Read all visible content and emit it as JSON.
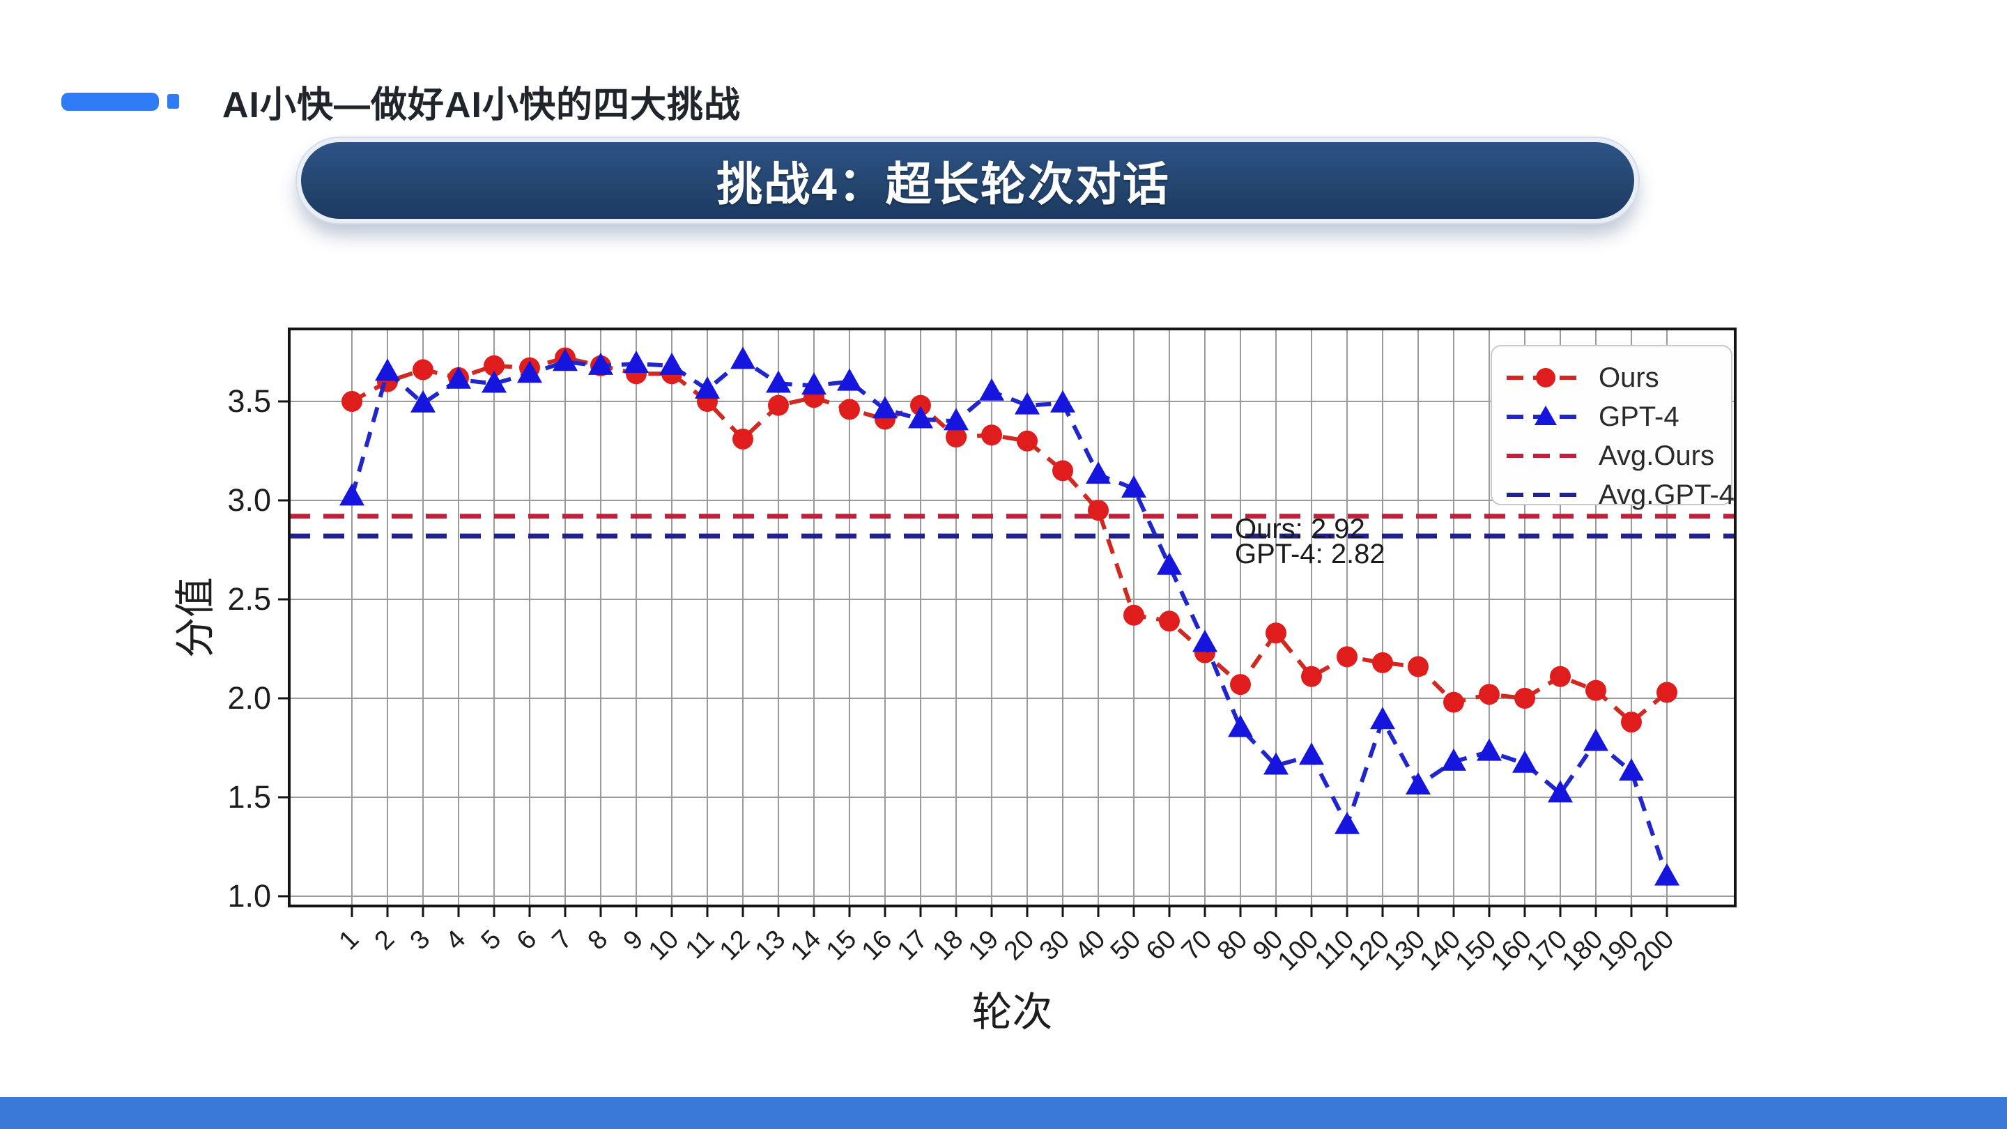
{
  "header": {
    "title": "AI小快—做好AI小快的四大挑战",
    "accent_color": "#2e7bf5"
  },
  "banner": {
    "label": "挑战4：超长轮次对话",
    "bg_color": "#24466f"
  },
  "footer": {
    "bar_color": "#3a7ad6"
  },
  "chart_data": {
    "type": "line",
    "xlabel": "轮次",
    "ylabel": "分值",
    "grid": true,
    "legend_position": "upper right",
    "ylim": [
      0.95,
      3.86
    ],
    "yticks": [
      1.0,
      1.5,
      2.0,
      2.5,
      3.0,
      3.5
    ],
    "categories": [
      "1",
      "2",
      "3",
      "4",
      "5",
      "6",
      "7",
      "8",
      "9",
      "10",
      "11",
      "12",
      "13",
      "14",
      "15",
      "16",
      "17",
      "18",
      "19",
      "20",
      "30",
      "40",
      "50",
      "60",
      "70",
      "80",
      "90",
      "100",
      "110",
      "120",
      "130",
      "140",
      "150",
      "160",
      "170",
      "180",
      "190",
      "200"
    ],
    "series": [
      {
        "name": "Ours",
        "kind": "line",
        "marker": "circle",
        "color": "#e01d1d",
        "line_color": "#cf2a22",
        "values": [
          3.5,
          3.6,
          3.66,
          3.62,
          3.68,
          3.67,
          3.72,
          3.68,
          3.64,
          3.64,
          3.5,
          3.31,
          3.48,
          3.52,
          3.46,
          3.41,
          3.48,
          3.32,
          3.33,
          3.3,
          3.15,
          2.95,
          2.42,
          2.39,
          2.23,
          2.07,
          2.33,
          2.11,
          2.21,
          2.18,
          2.16,
          1.98,
          2.02,
          2.0,
          2.11,
          2.04,
          1.88,
          2.03
        ]
      },
      {
        "name": "GPT-4",
        "kind": "line",
        "marker": "triangle",
        "color": "#1515dd",
        "line_color": "#2026c9",
        "values": [
          3.02,
          3.65,
          3.49,
          3.61,
          3.59,
          3.64,
          3.7,
          3.68,
          3.69,
          3.68,
          3.56,
          3.71,
          3.59,
          3.58,
          3.6,
          3.46,
          3.41,
          3.4,
          3.55,
          3.48,
          3.49,
          3.13,
          3.06,
          2.67,
          2.28,
          1.85,
          1.66,
          1.71,
          1.36,
          1.89,
          1.56,
          1.68,
          1.73,
          1.67,
          1.52,
          1.78,
          1.63,
          1.1
        ]
      },
      {
        "name": "Avg.Ours",
        "kind": "avg",
        "color": "#c0203a",
        "value": 2.92
      },
      {
        "name": "Avg.GPT-4",
        "kind": "avg",
        "color": "#20208f",
        "value": 2.82
      }
    ],
    "annotations": [
      {
        "text": "Ours: 2.92"
      },
      {
        "text": "GPT-4: 2.82"
      }
    ],
    "grid_color": "#9b9b9b",
    "spine_color": "#141414",
    "text_color": "#1d1d1d"
  }
}
